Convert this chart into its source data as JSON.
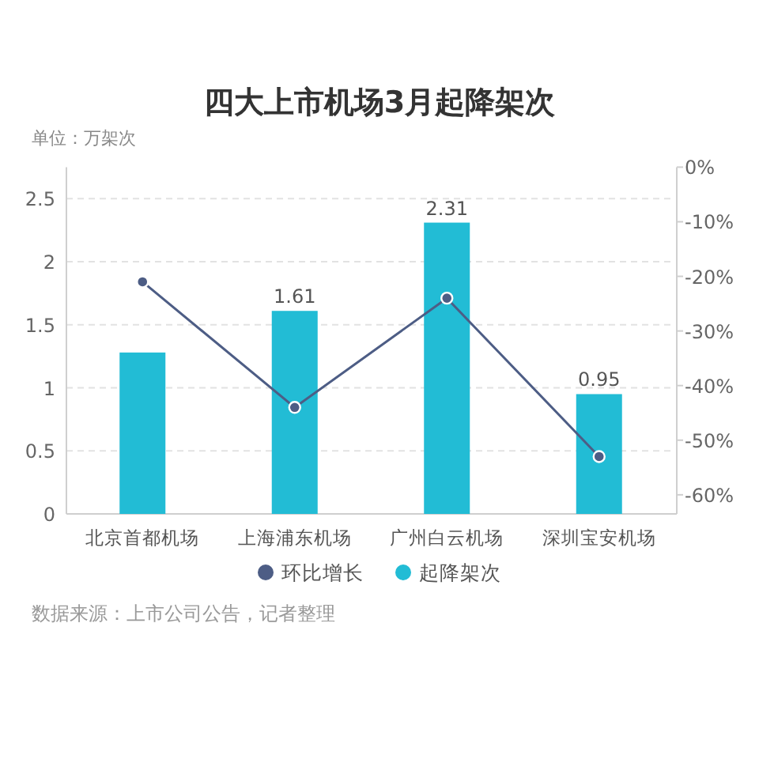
{
  "chart_data": {
    "type": "bar",
    "title": "四大上市机场3月起降架次",
    "ylabel": "单位：万架次",
    "categories": [
      "北京首都机场",
      "上海浦东机场",
      "广州白云机场",
      "深圳宝安机场"
    ],
    "series": [
      {
        "name": "环比增长",
        "type": "line",
        "axis": "y2",
        "color": "#4d5d85",
        "values": [
          -21,
          -44,
          -24,
          -53
        ]
      },
      {
        "name": "起降架次",
        "color": "#22bcd5",
        "values": [
          1.28,
          1.61,
          2.31,
          0.95
        ],
        "value_labels": [
          null,
          "1.61",
          "2.31",
          "0.95"
        ]
      }
    ],
    "ylim": [
      0,
      2.75
    ],
    "yticks": [
      0,
      0.5,
      1,
      1.5,
      2,
      2.5
    ],
    "y2lim": [
      -63.5,
      0
    ],
    "y2ticks": [
      {
        "value": 0,
        "label": "0%"
      },
      {
        "value": -10,
        "label": "-10%"
      },
      {
        "value": -20,
        "label": "-20%"
      },
      {
        "value": -30,
        "label": "-30%"
      },
      {
        "value": -40,
        "label": "-40%"
      },
      {
        "value": -50,
        "label": "-50%"
      },
      {
        "value": -60,
        "label": "-60%"
      }
    ],
    "grid": "y",
    "legend": "bottom",
    "marker": "circle",
    "line_style": "solid",
    "annotations": [
      "数据来源：上市公司公告，记者整理"
    ]
  }
}
